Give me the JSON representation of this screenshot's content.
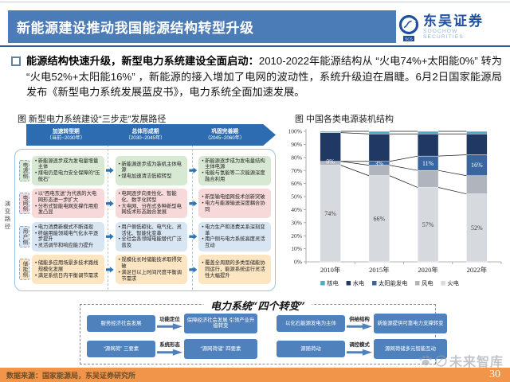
{
  "page": {
    "title": "新能源建设推动我国能源结构转型升级",
    "page_number": "30"
  },
  "logo": {
    "name": "东吴证券",
    "subtitle": "SOOCHOW SECURITIES"
  },
  "summary": {
    "bold": "能源结构快速升级，新型电力系统建设全面启动：",
    "text": "2010-2022年能源结构从 “火电74%+太阳能0%” 转为 “火电52%+太阳能16%” ，新能源的接入增加了电网的波动性，系统升级迫在眉睫。6月2日国家能源局发布《新型电力系统发展蓝皮书》，电力系统全面加速发展。"
  },
  "figure_left": {
    "title": "图 新型电力系统建设“三步走”发展路径",
    "axis_label": "演变路径",
    "phases": [
      {
        "name": "加速转型期",
        "years": "（当前~2030年）"
      },
      {
        "name": "总体形成期",
        "years": "（2030~2045年）"
      },
      {
        "name": "巩固完善期",
        "years": "（2045~2060年）"
      }
    ],
    "rows": [
      {
        "label": "电源侧",
        "tint": "#d8e9d3",
        "cells": [
          [
            "新能源逐步成为发电量增量主体",
            "煤电仍是电力安全保障的“压舱石”"
          ],
          [
            "新能源逐步成为装机主体电源",
            "煤电加速清洁低碳转型"
          ],
          [
            "新能源逐步成为发电量结构主体电源",
            "电能与氢能等二次能源深度融合利用"
          ]
        ]
      },
      {
        "label": "电网侧",
        "tint": "#f8d9da",
        "cells": [
          [
            "以“西电东送”为代表的大电网形态进一步扩大",
            "分布式智能电网支撑作用愈发凸显"
          ],
          [
            "电网逐步向柔性化、智能化、数字化转型",
            "大电网、分布式多种新型电网技术形态融合发展"
          ],
          [
            "新型输电组网技术创新突破",
            "电力与能源输送深度耦合协同"
          ]
        ]
      },
      {
        "label": "用户侧",
        "tint": "#d8e5f2",
        "cells": [
          [
            "电力消费新模式不断涌现",
            "终端用能领域电气化水平逐步提升",
            "灵活调节和响应能力提升"
          ],
          [
            "用户侧低碳化、电气化、灵活化、智能化变革",
            "全社会各领域电能替代广泛普及"
          ],
          [
            "电力生产和消费关系深刻变革",
            "用户侧与电力系统高度灵活互动"
          ]
        ]
      },
      {
        "label": "储能侧",
        "tint": "#fce5c2",
        "cells": [
          [
            "储能多应用场景多技术路线规模化发展",
            "满足系统日内平衡调节需求"
          ],
          [
            "规模化长时储能技术取得突破",
            "满足日以上时间尺度平衡调节需求"
          ],
          [
            "覆盖全周期的多类型储能协同运行，能源系统运行灵活性大幅提升"
          ]
        ]
      }
    ]
  },
  "chart_data": {
    "type": "bar",
    "stacked": true,
    "title": "图  中国各类电源装机结构",
    "categories": [
      "2010年",
      "2015年",
      "2020年",
      "2022年"
    ],
    "series": [
      {
        "name": "火电",
        "color": "#d6d9de",
        "values": [
          74,
          66,
          57,
          52
        ],
        "labels": [
          "74%",
          "66%",
          "57%",
          "52%"
        ],
        "label_color": "#404040"
      },
      {
        "name": "风电",
        "color": "#b0b5bd",
        "values": [
          3,
          8,
          13,
          14
        ]
      },
      {
        "name": "太阳能发电",
        "color": "#3a66a0",
        "values": [
          0,
          3,
          11,
          16
        ],
        "labels": [
          "0%",
          "3%",
          "11%",
          "16%"
        ],
        "label_color": "#ffffff"
      },
      {
        "name": "水电",
        "color": "#1f3864",
        "values": [
          22,
          21,
          17,
          16
        ]
      },
      {
        "name": "核电",
        "color": "#4bacc6",
        "values": [
          1,
          2,
          2,
          2
        ]
      }
    ],
    "legend_order": [
      "核电",
      "水电",
      "太阳能发电",
      "风电",
      "火电"
    ],
    "ylim": [
      0,
      100
    ],
    "yticks": [
      "0%",
      "10%",
      "20%",
      "30%",
      "40%",
      "50%",
      "60%",
      "70%",
      "80%",
      "90%",
      "100%"
    ],
    "legend_position": "bottom",
    "grid": false
  },
  "four_transforms": {
    "title": "电力系统“四个转变”",
    "items": [
      {
        "from": "服务经济社会发展",
        "label": "功能定位",
        "to": "保障经济社会发展 引领产业升级转变"
      },
      {
        "from": "以化石能源发电为主体",
        "label": "供给结构",
        "to": "新能源提供可靠电力支撑转变"
      },
      {
        "from": "“源网荷” 三要素",
        "label": "系统形态",
        "to": "“源网荷储” 四要素"
      },
      {
        "from": "源随荷动",
        "label": "调控模式",
        "to": "源网荷储多元智能互动"
      }
    ]
  },
  "watermark": {
    "text": "未来智库"
  },
  "footer": {
    "source": "数据来源：国家能源局，东吴证券研究所"
  },
  "colors": {
    "header_blue": "#4c7cb7",
    "separator_blue": "#2b5f9f",
    "banner_blue": "#2e6cb2",
    "arrow_blue": "#2e75b6",
    "transform_box_blue": "#4f81bd",
    "footer_orange": "#f0954a"
  }
}
